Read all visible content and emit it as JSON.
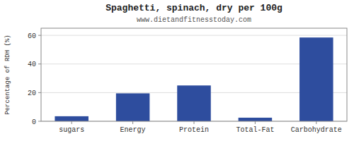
{
  "chart_data": {
    "type": "bar",
    "title": "Spaghetti, spinach, dry per 100g",
    "subtitle": "www.dietandfitnesstoday.com",
    "categories": [
      "sugars",
      "Energy",
      "Protein",
      "Total-Fat",
      "Carbohydrate"
    ],
    "values": [
      3.5,
      19.5,
      25.0,
      2.5,
      58.5
    ],
    "color": "#2e4d9e",
    "ylabel": "Percentage of RDH (%)",
    "ylim": [
      0,
      65
    ],
    "yticks": [
      0,
      20,
      40,
      60
    ],
    "grid": true
  }
}
